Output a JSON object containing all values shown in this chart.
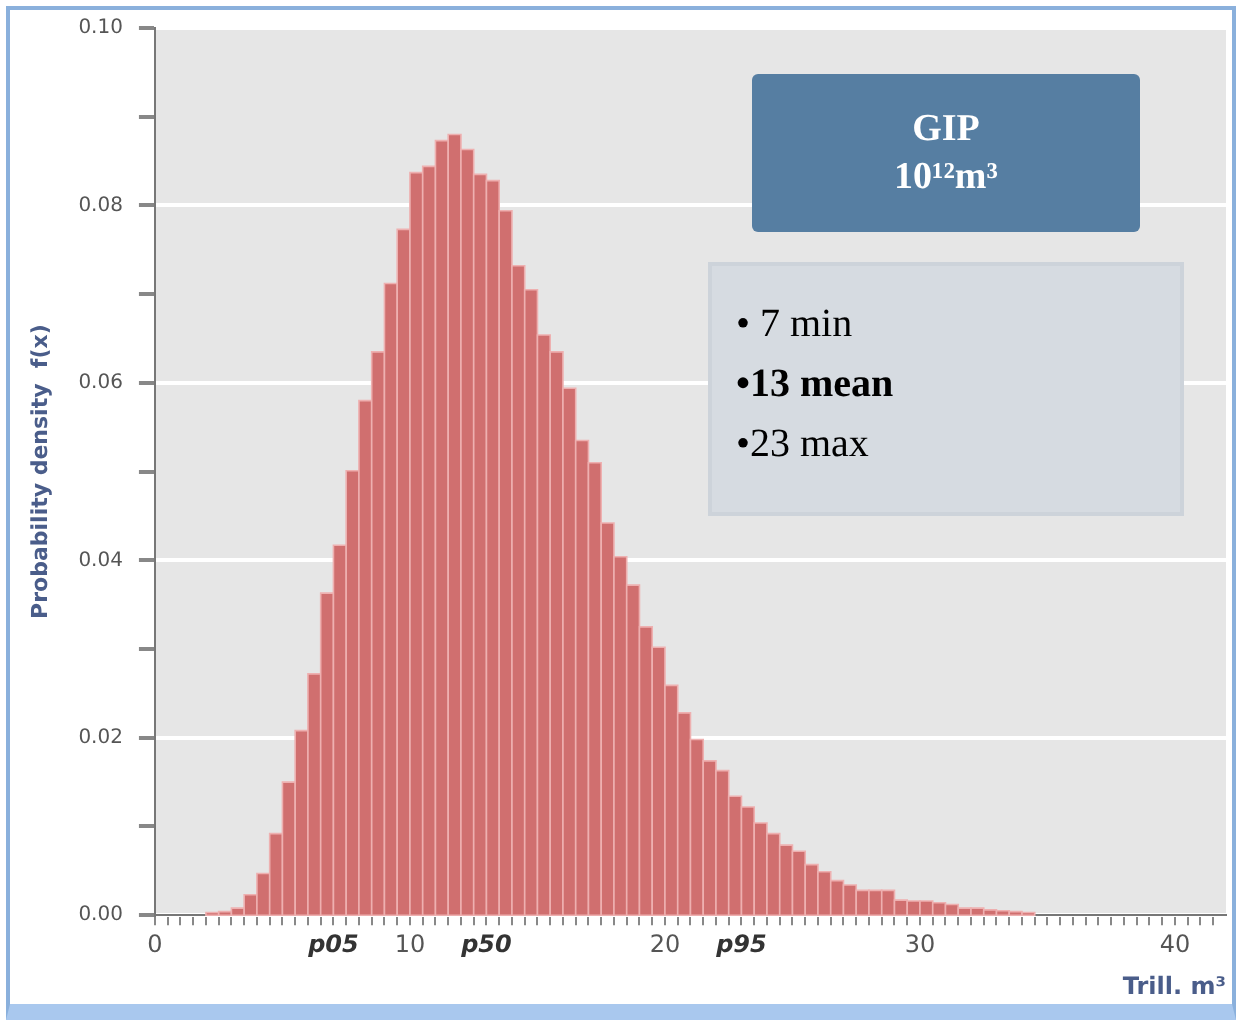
{
  "chart_data": {
    "type": "histogram",
    "xlabel": "Trill. m³",
    "ylabel": "Probability density  f(x)",
    "bins": [
      2.0,
      2.5,
      3.0,
      3.5,
      4.0,
      4.5,
      5.0,
      5.5,
      6.0,
      6.5,
      7.0,
      7.5,
      8.0,
      8.5,
      9.0,
      9.5,
      10.0,
      10.5,
      11.0,
      11.5,
      12.0,
      12.5,
      13.0,
      13.5,
      14.0,
      14.5,
      15.0,
      15.5,
      16.0,
      16.5,
      17.0,
      17.5,
      18.0,
      18.5,
      19.0,
      19.5,
      20.0,
      20.5,
      21.0,
      21.5,
      22.0,
      22.5,
      23.0,
      23.5,
      24.0,
      24.5,
      25.0,
      25.5,
      26.0,
      26.5,
      27.0,
      27.5,
      28.0,
      28.5,
      29.0,
      29.5,
      30.0,
      30.5,
      31.0,
      31.5,
      32.0,
      32.5,
      33.0,
      33.5,
      34.0,
      34.5
    ],
    "values": [
      0.0003,
      0.0004,
      0.0008,
      0.0023,
      0.0047,
      0.0092,
      0.015,
      0.0208,
      0.0272,
      0.0363,
      0.0417,
      0.0501,
      0.058,
      0.0635,
      0.0712,
      0.0773,
      0.0837,
      0.0844,
      0.0873,
      0.088,
      0.0863,
      0.0835,
      0.0828,
      0.0794,
      0.0732,
      0.0705,
      0.0654,
      0.0635,
      0.0594,
      0.0535,
      0.051,
      0.0442,
      0.0404,
      0.0372,
      0.0325,
      0.0302,
      0.0259,
      0.0228,
      0.0198,
      0.0174,
      0.0163,
      0.0134,
      0.0122,
      0.0104,
      0.0092,
      0.0079,
      0.0072,
      0.0057,
      0.0049,
      0.0039,
      0.0034,
      0.0028,
      0.0028,
      0.0028,
      0.0017,
      0.0016,
      0.0016,
      0.0014,
      0.0012,
      0.0008,
      0.0008,
      0.0006,
      0.0005,
      0.0004,
      0.0003
    ],
    "color": "#d06f6f",
    "xlim": [
      0,
      42
    ],
    "xticks": [
      0,
      {
        "value": 0.5,
        "label": null
      },
      {
        "value": 1,
        "label": null
      },
      {
        "value": 1.5,
        "label": null
      },
      {
        "value": 2,
        "label": null
      },
      {
        "value": 2.5,
        "label": null
      },
      {
        "value": 3,
        "label": null
      },
      {
        "value": 3.5,
        "label": null
      },
      {
        "value": 4,
        "label": null
      },
      {
        "value": 4.5,
        "label": null
      },
      {
        "value": 5,
        "label": null
      },
      {
        "value": 5.5,
        "label": null
      },
      {
        "value": 6,
        "label": null
      },
      {
        "value": 6.5,
        "label": null
      },
      {
        "value": 7,
        "label": "p05"
      },
      {
        "value": 7.5,
        "label": null
      },
      {
        "value": 8,
        "label": null
      },
      {
        "value": 8.5,
        "label": null
      },
      {
        "value": 9,
        "label": null
      },
      {
        "value": 9.5,
        "label": null
      },
      10,
      {
        "value": 10.5,
        "label": null
      },
      {
        "value": 11,
        "label": null
      },
      {
        "value": 11.5,
        "label": null
      },
      {
        "value": 12,
        "label": null
      },
      {
        "value": 12.5,
        "label": null
      },
      {
        "value": 13,
        "label": "p50"
      },
      {
        "value": 13.5,
        "label": null
      },
      {
        "value": 14,
        "label": null
      },
      {
        "value": 14.5,
        "label": null
      },
      {
        "value": 15,
        "label": null
      },
      {
        "value": 15.5,
        "label": null
      },
      {
        "value": 16,
        "label": null
      },
      {
        "value": 16.5,
        "label": null
      },
      {
        "value": 17,
        "label": null
      },
      {
        "value": 17.5,
        "label": null
      },
      {
        "value": 18,
        "label": null
      },
      {
        "value": 18.5,
        "label": null
      },
      {
        "value": 19,
        "label": null
      },
      {
        "value": 19.5,
        "label": null
      },
      20,
      {
        "value": 20.5,
        "label": null
      },
      {
        "value": 21,
        "label": null
      },
      {
        "value": 21.5,
        "label": null
      },
      {
        "value": 22,
        "label": null
      },
      {
        "value": 22.5,
        "label": null
      },
      {
        "value": 23,
        "label": "p95"
      },
      {
        "value": 23.5,
        "label": null
      },
      {
        "value": 24,
        "label": null
      },
      {
        "value": 24.5,
        "label": null
      },
      {
        "value": 25,
        "label": null
      },
      {
        "value": 25.5,
        "label": null
      },
      {
        "value": 26,
        "label": null
      },
      {
        "value": 26.5,
        "label": null
      },
      {
        "value": 27,
        "label": null
      },
      {
        "value": 27.5,
        "label": null
      },
      {
        "value": 28,
        "label": null
      },
      {
        "value": 28.5,
        "label": null
      },
      {
        "value": 29,
        "label": null
      },
      {
        "value": 29.5,
        "label": null
      },
      30,
      {
        "value": 30.5,
        "label": null
      },
      {
        "value": 31,
        "label": null
      },
      {
        "value": 31.5,
        "label": null
      },
      {
        "value": 32,
        "label": null
      },
      {
        "value": 32.5,
        "label": null
      },
      {
        "value": 33,
        "label": null
      },
      {
        "value": 33.5,
        "label": null
      },
      {
        "value": 34,
        "label": null
      },
      {
        "value": 34.5,
        "label": null
      },
      {
        "value": 35,
        "label": null
      },
      {
        "value": 35.5,
        "label": null
      },
      {
        "value": 36,
        "label": null
      },
      {
        "value": 36.5,
        "label": null
      },
      {
        "value": 37,
        "label": null
      },
      {
        "value": 37.5,
        "label": null
      },
      {
        "value": 38,
        "label": null
      },
      {
        "value": 38.5,
        "label": null
      },
      {
        "value": 39,
        "label": null
      },
      {
        "value": 39.5,
        "label": null
      },
      40,
      {
        "value": 40.5,
        "label": null
      },
      {
        "value": 41,
        "label": null
      },
      {
        "value": 41.5,
        "label": null
      }
    ],
    "ylim": [
      0,
      0.1
    ],
    "yticks": [
      {
        "value": 0,
        "label": "0.00"
      },
      {
        "value": 0.01,
        "label": null
      },
      {
        "value": 0.02,
        "label": "0.02"
      },
      {
        "value": 0.03,
        "label": null
      },
      {
        "value": 0.04,
        "label": "0.04"
      },
      {
        "value": 0.05,
        "label": null
      },
      {
        "value": 0.06,
        "label": "0.06"
      },
      {
        "value": 0.07,
        "label": null
      },
      {
        "value": 0.08,
        "label": "0.08"
      },
      {
        "value": 0.09,
        "label": null
      },
      {
        "value": 0.1,
        "label": "0.10"
      }
    ],
    "grid": "y",
    "legend": false,
    "annotations": [
      "GIP",
      "10¹²m³",
      "•  7 min",
      "•13 mean",
      "•23 max"
    ]
  }
}
